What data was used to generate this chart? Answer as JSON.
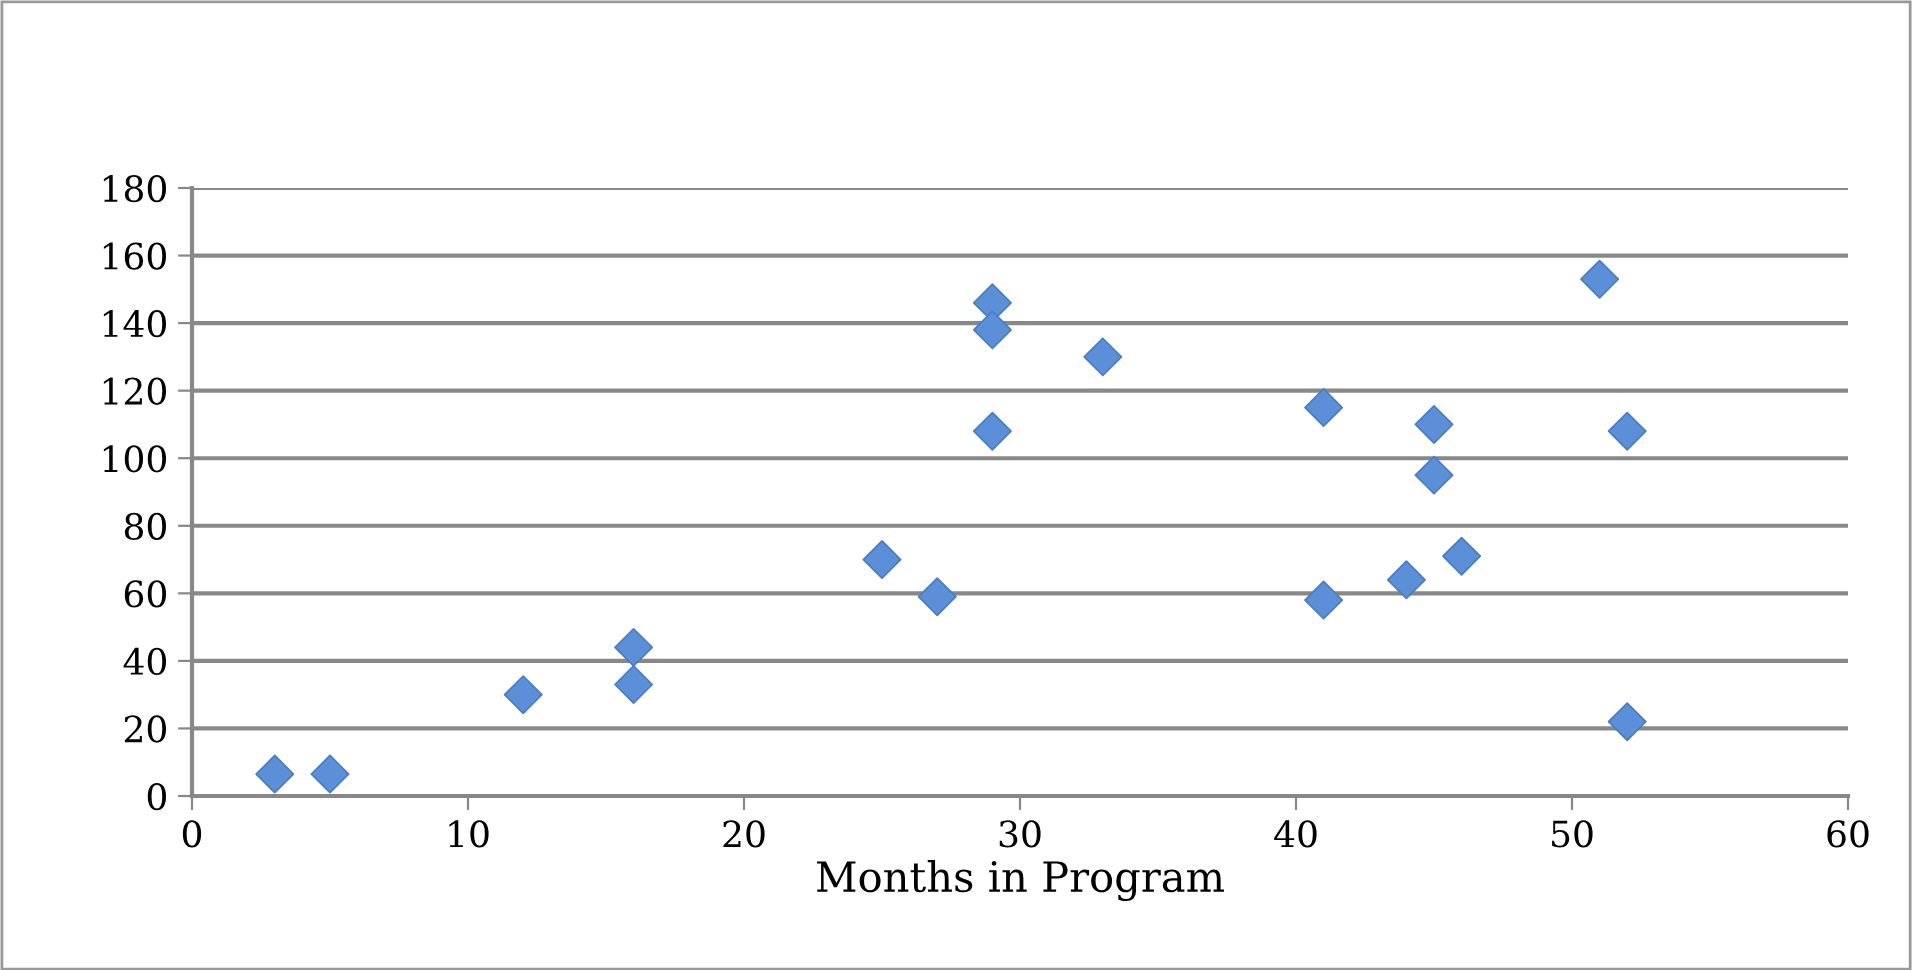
{
  "chart_data": {
    "type": "scatter",
    "xlabel": "Months in Program",
    "x": [
      3,
      5,
      12,
      16,
      16,
      25,
      27,
      29,
      29,
      29,
      33,
      41,
      41,
      44,
      45,
      45,
      46,
      51,
      52,
      52
    ],
    "series": [
      {
        "color": "#5b8fd8",
        "values": [
          6.5,
          6.5,
          30,
          44,
          33,
          70,
          59,
          146,
          138,
          108,
          130,
          115,
          58,
          64,
          110,
          95,
          71,
          153,
          108,
          22
        ]
      }
    ],
    "xlim": [
      0,
      60
    ],
    "xticks": [
      0,
      10,
      20,
      30,
      40,
      50,
      60
    ],
    "ylim": [
      0,
      180
    ],
    "yticks": [
      0,
      20,
      40,
      60,
      80,
      100,
      120,
      140,
      160,
      180
    ],
    "grid": "y",
    "marker": "diamond",
    "legend": false
  }
}
